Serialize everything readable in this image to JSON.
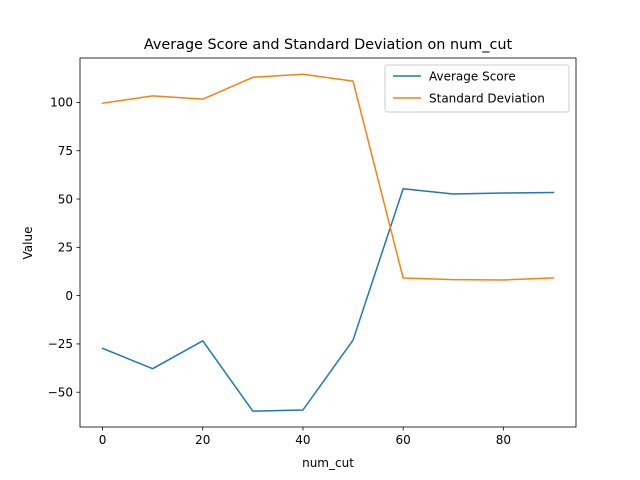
{
  "chart_data": {
    "type": "line",
    "title": "Average Score and Standard Deviation on num_cut",
    "xlabel": "num_cut",
    "ylabel": "Value",
    "xlim": [
      -4.5,
      94.5
    ],
    "ylim": [
      -68,
      123
    ],
    "xticks": [
      0,
      20,
      40,
      60,
      80
    ],
    "yticks": [
      -50,
      -25,
      0,
      25,
      50,
      75,
      100
    ],
    "x": [
      0,
      10,
      20,
      30,
      40,
      50,
      60,
      70,
      80,
      90
    ],
    "grid": false,
    "legend_position": "top-right",
    "series": [
      {
        "name": "Average Score",
        "color": "#1f77b4",
        "values": [
          -27.3,
          -37.8,
          -23.4,
          -59.8,
          -59.2,
          -23.0,
          55.3,
          52.6,
          53.1,
          53.4
        ]
      },
      {
        "name": "Standard Deviation",
        "color": "#ff7f0e",
        "values": [
          99.6,
          103.4,
          101.7,
          113.0,
          114.6,
          111.0,
          9.1,
          8.3,
          8.1,
          9.2
        ]
      }
    ]
  }
}
